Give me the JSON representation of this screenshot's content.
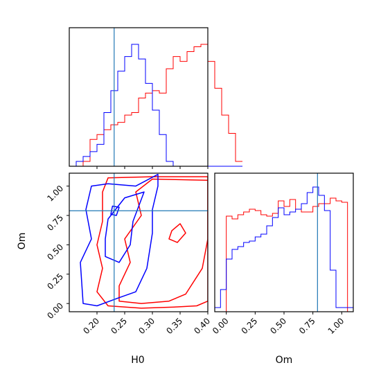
{
  "colors": {
    "red": "#ff0000",
    "blue": "#0000ff",
    "truth": "#1f77b4"
  },
  "chart_data": [
    {
      "type": "histogram",
      "panel": "top-left",
      "xlim": [
        0.15,
        0.4
      ],
      "truth": 0.231,
      "bins": {
        "start": 0.15,
        "width": 0.0125
      },
      "series": [
        {
          "color": "red",
          "values": [
            0.0,
            0.0,
            0.04,
            0.22,
            0.26,
            0.3,
            0.34,
            0.36,
            0.42,
            0.44,
            0.56,
            0.6,
            0.62,
            0.6,
            0.8,
            0.9,
            0.86,
            0.94,
            0.98,
            1.0,
            0.86,
            0.64,
            0.42,
            0.27,
            0.04
          ]
        },
        {
          "color": "blue",
          "values": [
            0.0,
            0.04,
            0.08,
            0.12,
            0.18,
            0.44,
            0.62,
            0.78,
            0.9,
            1.0,
            0.88,
            0.68,
            0.46,
            0.26,
            0.04,
            0.0,
            0.0,
            0.0,
            0.0,
            0.0,
            0.0,
            0.0,
            0.0,
            0.0,
            0.0
          ]
        }
      ],
      "xticks": [
        0.2,
        0.25,
        0.3,
        0.35,
        0.4
      ],
      "tick_labels_shown": false
    },
    {
      "type": "contour",
      "panel": "bottom-left",
      "xlabel": "H0",
      "ylabel": "Om",
      "xlim": [
        0.15,
        0.4
      ],
      "ylim": [
        -0.07,
        1.11
      ],
      "truth": {
        "x": 0.231,
        "y": 0.79
      },
      "xticks": [
        "0.20",
        "0.25",
        "0.30",
        "0.35",
        "0.40"
      ],
      "yticks": [
        "0.00",
        "0.25",
        "0.50",
        "0.75",
        "1.00"
      ],
      "series": [
        {
          "color": "red",
          "contours": [
            [
              [
                0.22,
                -0.02
              ],
              [
                0.28,
                -0.04
              ],
              [
                0.34,
                -0.03
              ],
              [
                0.38,
                -0.02
              ],
              [
                0.4,
                0.02
              ],
              [
                0.4,
                1.08
              ],
              [
                0.3,
                1.08
              ],
              [
                0.22,
                1.07
              ],
              [
                0.21,
                0.95
              ],
              [
                0.21,
                0.7
              ],
              [
                0.2,
                0.5
              ],
              [
                0.21,
                0.3
              ],
              [
                0.2,
                0.1
              ],
              [
                0.22,
                -0.02
              ]
            ],
            [
              [
                0.24,
                0.02
              ],
              [
                0.28,
                0.0
              ],
              [
                0.33,
                0.02
              ],
              [
                0.36,
                0.08
              ],
              [
                0.39,
                0.3
              ],
              [
                0.4,
                0.55
              ],
              [
                0.4,
                1.05
              ],
              [
                0.3,
                1.06
              ],
              [
                0.27,
                0.95
              ],
              [
                0.28,
                0.75
              ],
              [
                0.25,
                0.55
              ],
              [
                0.26,
                0.35
              ],
              [
                0.24,
                0.15
              ],
              [
                0.24,
                0.02
              ]
            ],
            [
              [
                0.33,
                0.55
              ],
              [
                0.345,
                0.52
              ],
              [
                0.36,
                0.6
              ],
              [
                0.35,
                0.68
              ],
              [
                0.335,
                0.62
              ],
              [
                0.33,
                0.55
              ]
            ]
          ]
        },
        {
          "color": "blue",
          "contours": [
            [
              [
                0.175,
                0.0
              ],
              [
                0.2,
                -0.02
              ],
              [
                0.24,
                0.05
              ],
              [
                0.27,
                0.1
              ],
              [
                0.29,
                0.3
              ],
              [
                0.3,
                0.6
              ],
              [
                0.3,
                0.8
              ],
              [
                0.31,
                1.0
              ],
              [
                0.31,
                1.1
              ],
              [
                0.27,
                1.0
              ],
              [
                0.22,
                1.02
              ],
              [
                0.19,
                1.0
              ],
              [
                0.18,
                0.8
              ],
              [
                0.19,
                0.55
              ],
              [
                0.17,
                0.35
              ],
              [
                0.175,
                0.0
              ]
            ],
            [
              [
                0.215,
                0.4
              ],
              [
                0.24,
                0.35
              ],
              [
                0.26,
                0.5
              ],
              [
                0.265,
                0.7
              ],
              [
                0.285,
                0.95
              ],
              [
                0.25,
                0.9
              ],
              [
                0.22,
                0.72
              ],
              [
                0.215,
                0.55
              ],
              [
                0.215,
                0.4
              ]
            ],
            [
              [
                0.225,
                0.76
              ],
              [
                0.235,
                0.75
              ],
              [
                0.24,
                0.82
              ],
              [
                0.228,
                0.83
              ],
              [
                0.225,
                0.76
              ]
            ]
          ]
        }
      ]
    },
    {
      "type": "histogram",
      "panel": "bottom-right",
      "xlabel": "Om",
      "xlim": [
        -0.1,
        1.1
      ],
      "truth": 0.79,
      "xticks": [
        "0.00",
        "0.25",
        "0.50",
        "0.75",
        "1.00"
      ],
      "bins": {
        "start": -0.1,
        "width": 0.05
      },
      "series": [
        {
          "color": "red",
          "values": [
            0.0,
            0.0,
            0.69,
            0.67,
            0.7,
            0.72,
            0.74,
            0.73,
            0.7,
            0.69,
            0.71,
            0.8,
            0.76,
            0.81,
            0.74,
            0.72,
            0.72,
            0.76,
            0.78,
            0.78,
            0.82,
            0.8,
            0.79,
            0.0
          ]
        },
        {
          "color": "blue",
          "values": [
            0.03,
            0.16,
            0.38,
            0.45,
            0.47,
            0.5,
            0.51,
            0.54,
            0.56,
            0.62,
            0.68,
            0.75,
            0.7,
            0.72,
            0.74,
            0.78,
            0.86,
            0.9,
            0.84,
            0.73,
            0.3,
            0.03,
            0.03,
            0.03
          ]
        }
      ]
    }
  ],
  "labels": {
    "xlabel_left": "H0",
    "xlabel_right": "Om",
    "ylabel_left": "Om"
  }
}
